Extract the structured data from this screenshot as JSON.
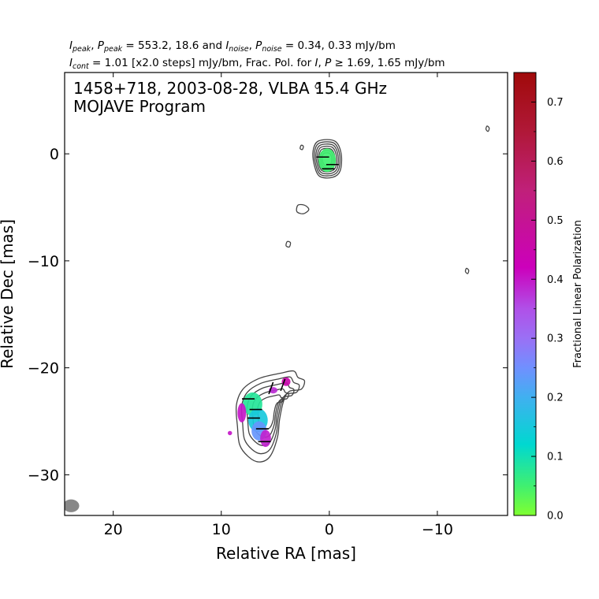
{
  "header": {
    "line1": {
      "i_peak": "I",
      "i_peak_sub": "peak",
      "sep1": ", ",
      "p_peak": "P",
      "p_peak_sub": "peak",
      "peak_vals": " = 553.2, 18.6 and ",
      "i_noise": "I",
      "i_noise_sub": "noise",
      "sep2": ", ",
      "p_noise": "P",
      "p_noise_sub": "noise",
      "noise_vals": " = 0.34, 0.33 mJy/bm"
    },
    "line2": {
      "i_cont": "I",
      "i_cont_sub": "cont",
      "cont_vals": " = 1.01 [x2.0 steps] mJy/bm, Frac. Pol. for ",
      "i": "I",
      "sep": ", ",
      "p": "P",
      "ge": " ≥ ",
      "frac_vals": "1.69, 1.65 mJy/bm"
    }
  },
  "panel": {
    "line1": "1458+718, 2003-08-28, VLBA 15.4 GHz",
    "line2": "MOJAVE Program"
  },
  "chart_data": {
    "type": "contour",
    "xlabel": "Relative RA [mas]",
    "ylabel": "Relative Dec [mas]",
    "xlim": [
      24.5,
      -16.5
    ],
    "ylim": [
      -33.8,
      7.6
    ],
    "x_ticks": [
      20,
      10,
      0,
      -10
    ],
    "x_tick_labels": [
      "20",
      "10",
      "0",
      "−10"
    ],
    "y_ticks": [
      0,
      -10,
      -20,
      -30
    ],
    "y_tick_labels": [
      "0",
      "−10",
      "−20",
      "−30"
    ],
    "grid": false,
    "contour_color": "#444444",
    "core": {
      "ra": 0.1,
      "dec": -0.6
    },
    "stokes_i_contours": [
      {
        "name": "core",
        "points": [
          [
            1.0,
            1.2
          ],
          [
            -0.5,
            1.2
          ],
          [
            -1.1,
            0.0
          ],
          [
            -1.0,
            -1.6
          ],
          [
            -0.3,
            -2.2
          ],
          [
            0.9,
            -2.1
          ],
          [
            1.4,
            -1.0
          ],
          [
            1.5,
            0.3
          ]
        ],
        "levels": 7
      },
      {
        "name": "jet-knot",
        "points": [
          [
            6.5,
            -21.0
          ],
          [
            4.5,
            -20.5
          ],
          [
            3.3,
            -20.3
          ],
          [
            2.9,
            -20.9
          ],
          [
            2.3,
            -21.2
          ],
          [
            2.6,
            -22.0
          ],
          [
            3.7,
            -22.2
          ],
          [
            4.2,
            -23.0
          ],
          [
            4.6,
            -24.8
          ],
          [
            4.8,
            -26.5
          ],
          [
            5.5,
            -28.3
          ],
          [
            6.5,
            -28.8
          ],
          [
            7.5,
            -28.3
          ],
          [
            8.3,
            -27.2
          ],
          [
            8.5,
            -25.5
          ],
          [
            8.6,
            -23.5
          ],
          [
            8.0,
            -22.0
          ]
        ],
        "levels": 5
      },
      {
        "name": "blob-1",
        "points": [
          [
            2.9,
            -4.8
          ],
          [
            2.3,
            -4.8
          ],
          [
            1.9,
            -5.2
          ],
          [
            2.4,
            -5.6
          ],
          [
            3.0,
            -5.4
          ]
        ],
        "levels": 1
      },
      {
        "name": "blob-2",
        "points": [
          [
            3.9,
            -8.2
          ],
          [
            3.6,
            -8.3
          ],
          [
            3.7,
            -8.7
          ],
          [
            4.0,
            -8.6
          ]
        ],
        "levels": 1
      },
      {
        "name": "blob-3",
        "points": [
          [
            2.6,
            0.8
          ],
          [
            2.4,
            0.7
          ],
          [
            2.5,
            0.4
          ],
          [
            2.7,
            0.5
          ]
        ],
        "levels": 1
      },
      {
        "name": "blob-4",
        "points": [
          [
            1.1,
            6.6
          ],
          [
            0.9,
            6.4
          ],
          [
            1.1,
            6.1
          ],
          [
            1.3,
            6.3
          ]
        ],
        "levels": 1
      },
      {
        "name": "blob-5",
        "points": [
          [
            -12.7,
            -10.7
          ],
          [
            -12.9,
            -10.9
          ],
          [
            -12.8,
            -11.2
          ],
          [
            -12.6,
            -11.0
          ]
        ],
        "levels": 1
      },
      {
        "name": "blob-6",
        "points": [
          [
            -14.6,
            2.6
          ],
          [
            -14.8,
            2.4
          ],
          [
            -14.7,
            2.1
          ],
          [
            -14.5,
            2.3
          ]
        ],
        "levels": 1
      }
    ],
    "fractional_polarization_patches": [
      {
        "ra": 0.2,
        "dec": -0.6,
        "rx": 0.8,
        "ry": 1.1,
        "value": 0.05
      },
      {
        "ra": 7.1,
        "dec": -23.4,
        "rx": 0.9,
        "ry": 1.1,
        "value": 0.08
      },
      {
        "ra": 6.6,
        "dec": -24.9,
        "rx": 0.9,
        "ry": 1.1,
        "value": 0.15
      },
      {
        "ra": 6.5,
        "dec": -25.9,
        "rx": 0.7,
        "ry": 0.9,
        "value": 0.24
      },
      {
        "ra": 5.9,
        "dec": -26.6,
        "rx": 0.5,
        "ry": 0.8,
        "value": 0.39
      },
      {
        "ra": 8.1,
        "dec": -24.2,
        "rx": 0.4,
        "ry": 0.9,
        "value": 0.4
      },
      {
        "ra": 5.2,
        "dec": -22.1,
        "rx": 0.4,
        "ry": 0.3,
        "value": 0.38
      },
      {
        "ra": 4.0,
        "dec": -21.3,
        "rx": 0.4,
        "ry": 0.4,
        "value": 0.45
      },
      {
        "ra": 9.2,
        "dec": -26.1,
        "rx": 0.2,
        "ry": 0.2,
        "value": 0.4
      }
    ],
    "evpa_ticks": [
      {
        "ra": 0.6,
        "dec": -0.3,
        "angle": 0
      },
      {
        "ra": -0.3,
        "dec": -1.0,
        "angle": 0
      },
      {
        "ra": 0.1,
        "dec": -1.4,
        "angle": 0
      },
      {
        "ra": 7.5,
        "dec": -22.9,
        "angle": 0
      },
      {
        "ra": 6.8,
        "dec": -23.9,
        "angle": 0
      },
      {
        "ra": 7.0,
        "dec": -24.7,
        "angle": 0
      },
      {
        "ra": 6.2,
        "dec": -25.7,
        "angle": 0
      },
      {
        "ra": 6.0,
        "dec": -26.9,
        "angle": 0
      },
      {
        "ra": 4.3,
        "dec": -21.6,
        "angle": 70
      },
      {
        "ra": 5.4,
        "dec": -21.9,
        "angle": 70
      }
    ],
    "beam": {
      "ra": 23.9,
      "dec": -32.9,
      "major": 0.75,
      "minor": 0.6,
      "color": "#888888"
    },
    "colorbar": {
      "title": "Fractional Linear Polarization",
      "min": 0.0,
      "max": 0.75,
      "ticks": [
        0.0,
        0.1,
        0.2,
        0.3,
        0.4,
        0.5,
        0.6,
        0.7
      ],
      "tick_labels": [
        "0.0",
        "0.1",
        "0.2",
        "0.3",
        "0.4",
        "0.5",
        "0.6",
        "0.7"
      ],
      "stops": [
        {
          "v": 0.0,
          "color": "#80ff30"
        },
        {
          "v": 0.05,
          "color": "#40f070"
        },
        {
          "v": 0.12,
          "color": "#00d8d0"
        },
        {
          "v": 0.2,
          "color": "#40b0f0"
        },
        {
          "v": 0.25,
          "color": "#7090ff"
        },
        {
          "v": 0.3,
          "color": "#9a70f5"
        },
        {
          "v": 0.35,
          "color": "#b050e8"
        },
        {
          "v": 0.42,
          "color": "#cc00bb"
        },
        {
          "v": 0.55,
          "color": "#c0207a"
        },
        {
          "v": 0.65,
          "color": "#b01838"
        },
        {
          "v": 0.75,
          "color": "#a00a0a"
        }
      ]
    }
  }
}
